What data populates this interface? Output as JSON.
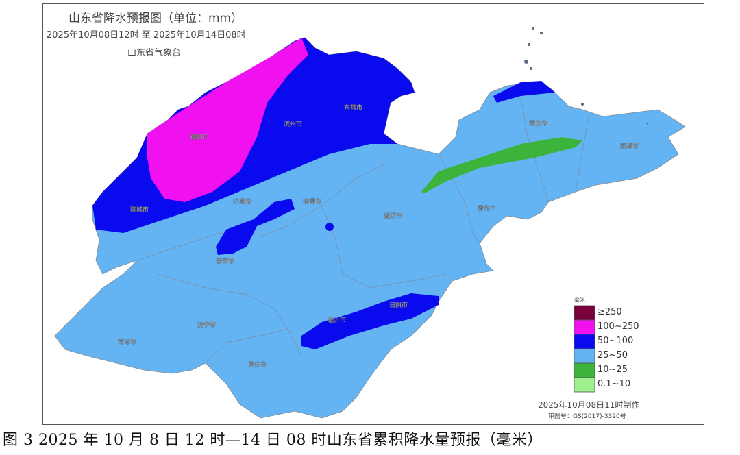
{
  "map": {
    "title": "山东省降水预报图（单位：mm）",
    "period": "2025年10月08日12时  至  2025年10月14日08时",
    "agency": "山东省气象台",
    "cities": [
      "德州市",
      "滨州市",
      "东营市",
      "聊城市",
      "济南市",
      "淄博市",
      "潍坊市",
      "烟台市",
      "威海市",
      "青岛市",
      "泰安市",
      "济宁市",
      "临沂市",
      "日照市",
      "菏泽市",
      "枣庄市"
    ],
    "legend": {
      "unit": "毫米",
      "items": [
        {
          "label": "≥250",
          "color": "#7a003c"
        },
        {
          "label": "100~250",
          "color": "#f010f0"
        },
        {
          "label": "50~100",
          "color": "#0a0aee"
        },
        {
          "label": "25~50",
          "color": "#64b4f4"
        },
        {
          "label": "10~25",
          "color": "#3cb43c"
        },
        {
          "label": "0.1~10",
          "color": "#a0f090"
        }
      ]
    },
    "made_time": "2025年10月08日11时制作",
    "approval_no": "审图号：GS(2017)-3320号"
  },
  "caption": "图 3 2025 年 10 月 8 日 12 时—14 日 08 时山东省累积降水量预报（毫米）"
}
